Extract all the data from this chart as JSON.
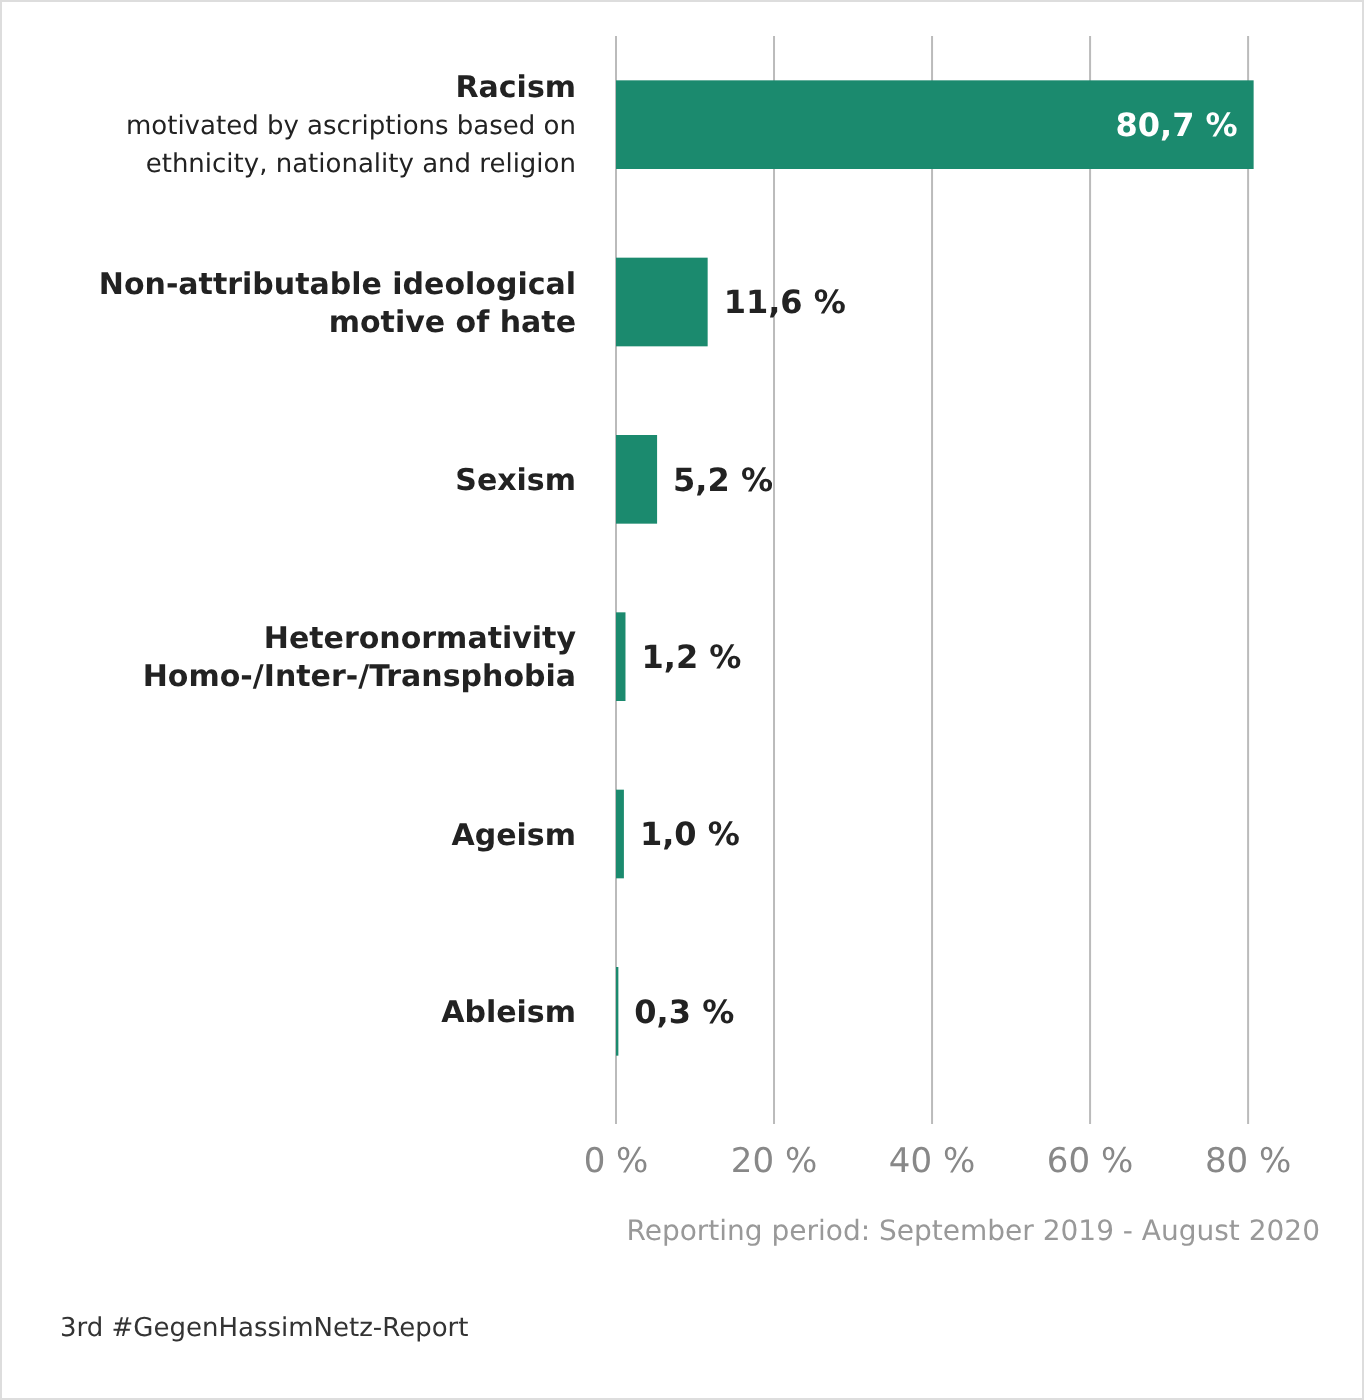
{
  "chart_data": {
    "type": "bar",
    "orientation": "horizontal",
    "categories": [
      "Racism\nmotivated by ascriptions based on\nethnicity, nationality and religion",
      "Non-attributable ideological\nmotive of hate",
      "Sexism",
      "Heteronormativity\nHomo-/Inter-/Transphobia",
      "Ageism",
      "Ableism"
    ],
    "values": [
      80.7,
      11.6,
      5.2,
      1.2,
      1.0,
      0.3
    ],
    "value_labels": [
      "80,7 %",
      "11,6 %",
      "5,2 %",
      "1,2 %",
      "1,0 %",
      "0,3 %"
    ],
    "color": "#1b8a6e",
    "xlim": [
      0,
      81
    ],
    "xticks": [
      {
        "value": 0,
        "label": "0 %"
      },
      {
        "value": 20,
        "label": "20 %"
      },
      {
        "value": 40,
        "label": "40 %"
      },
      {
        "value": 60,
        "label": "60 %"
      },
      {
        "value": 80,
        "label": "80 %"
      }
    ],
    "grid": "x",
    "annotations": [
      "Reporting period: September 2019 - August 2020",
      "3rd #GegenHassimNetz-Report"
    ]
  }
}
